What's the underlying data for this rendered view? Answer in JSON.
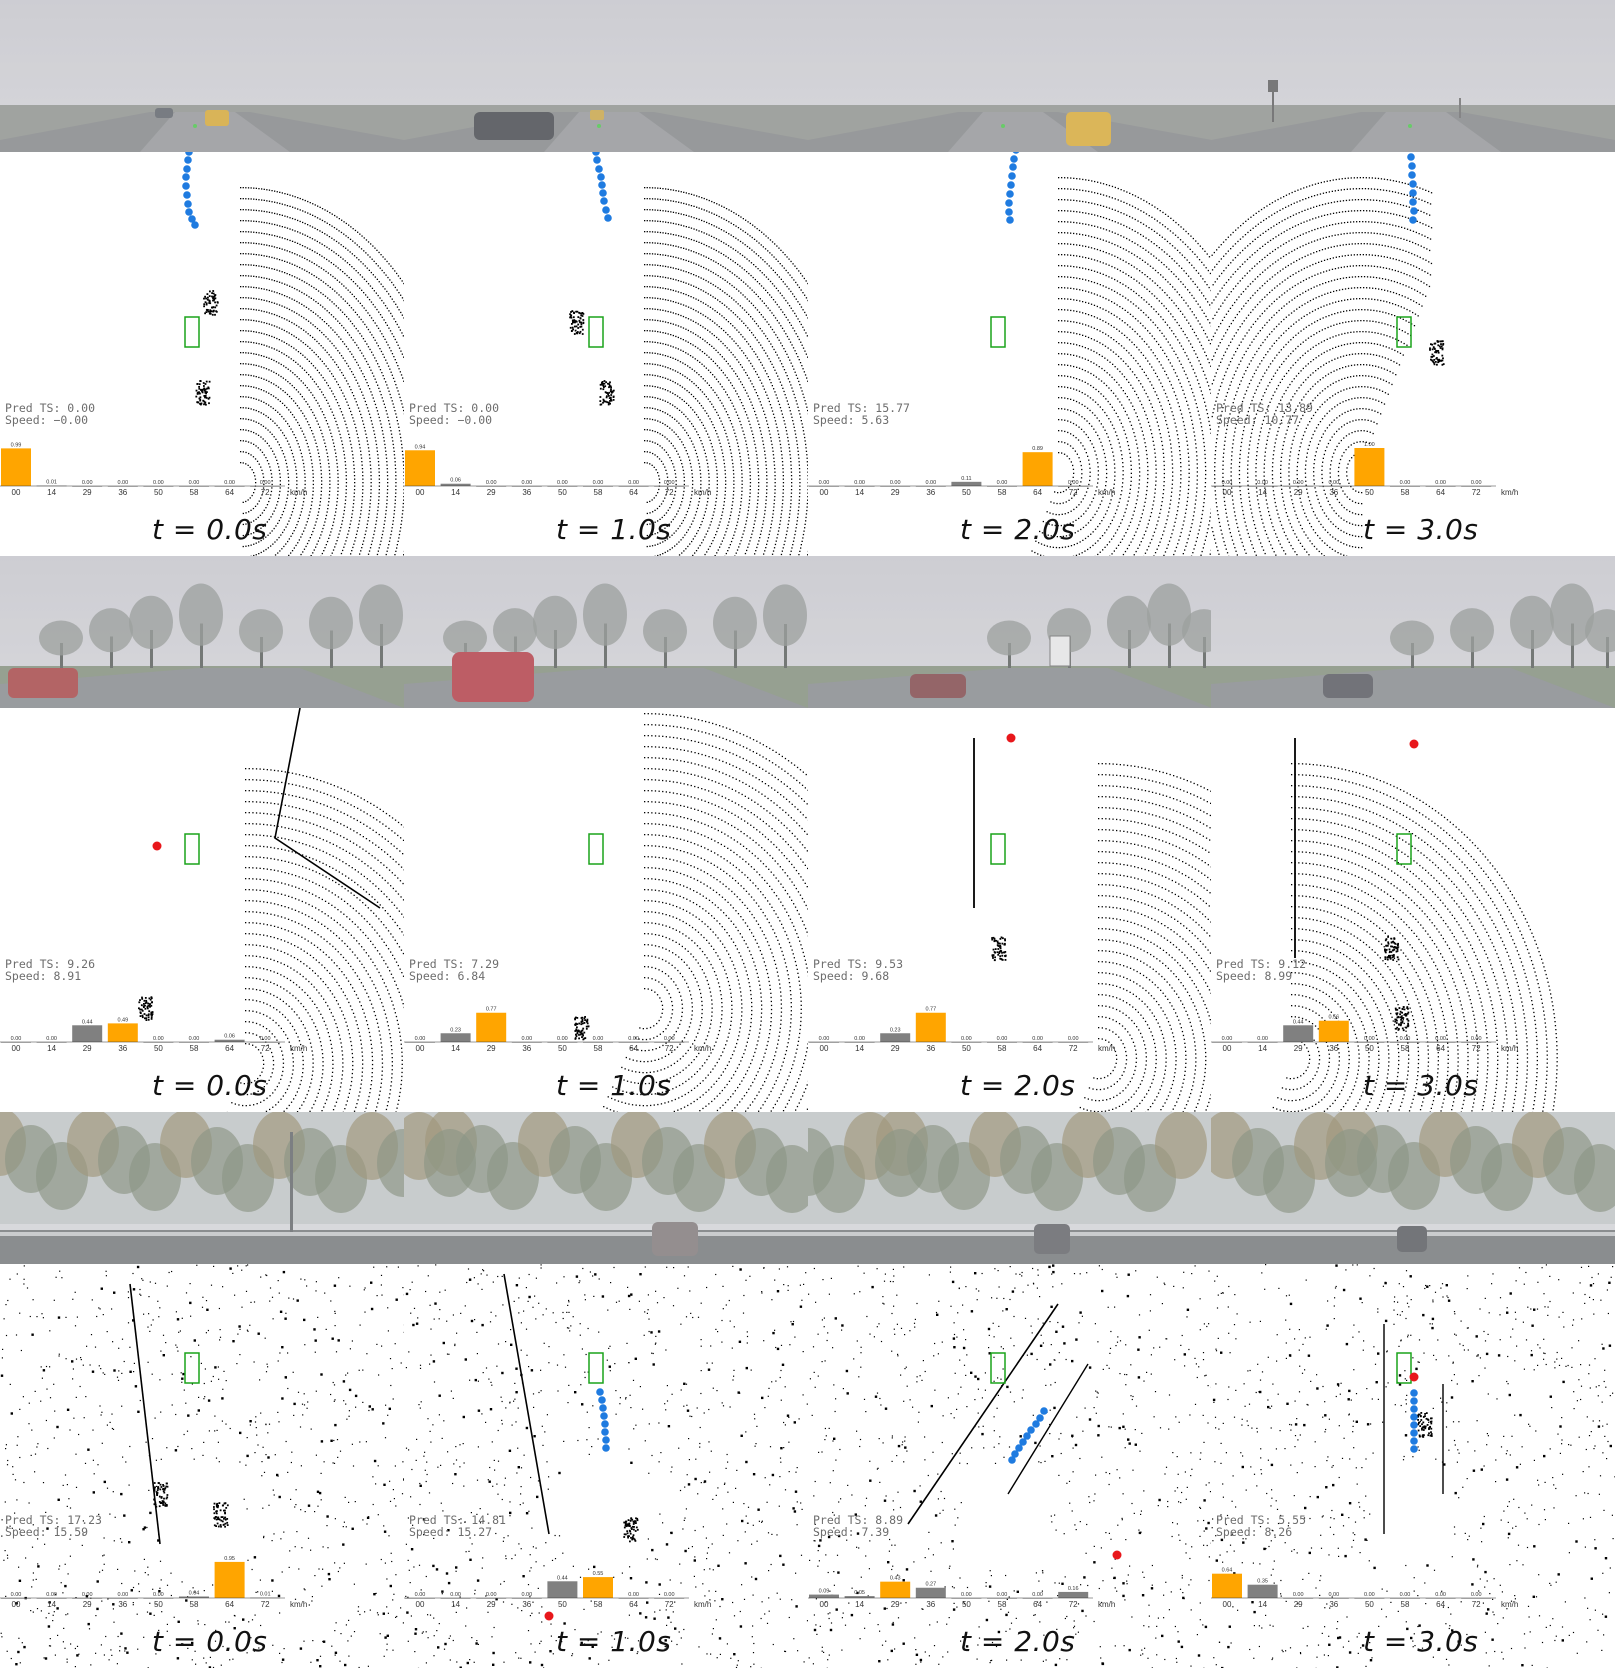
{
  "speed_bins": [
    "00",
    "14",
    "29",
    "36",
    "50",
    "58",
    "64",
    "72"
  ],
  "speed_unit": "km/h",
  "colors": {
    "argmax_bar": "#ffa500",
    "other_bar": "#808080",
    "trajectory": "#1f7be0",
    "target_point": "#e8171b",
    "ego_box": "#1aa31a",
    "lidar": "#000000",
    "fog_sky": "#c8c8cc"
  },
  "labels": {
    "pred_ts": "Pred TS:",
    "speed": "Speed:"
  },
  "rows": [
    {
      "scene": "fog-highway-taxi",
      "panels": [
        {
          "time_label": "t = 0.0s",
          "pred_ts": "0.00",
          "speed": "−0.00",
          "probs": [
            0.99,
            0.01,
            0.0,
            0.0,
            0.0,
            0.0,
            0.0,
            0.0
          ],
          "bar_labels": [
            "0.99",
            "0.01",
            "0.00",
            "0.00",
            "0.00",
            "0.00",
            "0.00",
            "0.00"
          ]
        },
        {
          "time_label": "t = 1.0s",
          "pred_ts": "0.00",
          "speed": "−0.00",
          "probs": [
            0.94,
            0.06,
            0.0,
            0.0,
            0.0,
            0.0,
            0.0,
            0.0
          ],
          "bar_labels": [
            "0.94",
            "0.06",
            "0.00",
            "0.00",
            "0.00",
            "0.00",
            "0.00",
            "0.00"
          ]
        },
        {
          "time_label": "t = 2.0s",
          "pred_ts": "15.77",
          "speed": "5.63",
          "probs": [
            0.0,
            0.0,
            0.0,
            0.0,
            0.11,
            0.0,
            0.89,
            0.0
          ],
          "bar_labels": [
            "0.00",
            "0.00",
            "0.00",
            "0.00",
            "0.11",
            "0.00",
            "0.89",
            "0.00"
          ]
        },
        {
          "time_label": "t = 3.0s",
          "pred_ts": "13.89",
          "speed": "10.77",
          "probs": [
            0.0,
            0.0,
            0.0,
            0.0,
            1.0,
            0.0,
            0.0,
            0.0
          ],
          "bar_labels": [
            "0.00",
            "0.00",
            "0.00",
            "0.00",
            "1.00",
            "0.00",
            "0.00",
            "0.00"
          ]
        }
      ]
    },
    {
      "scene": "fog-intersection-trees",
      "panels": [
        {
          "time_label": "t = 0.0s",
          "pred_ts": "9.26",
          "speed": "8.91",
          "probs": [
            0.0,
            0.0,
            0.44,
            0.49,
            0.0,
            0.0,
            0.06,
            0.0
          ],
          "bar_labels": [
            "0.00",
            "0.00",
            "0.44",
            "0.49",
            "0.00",
            "0.00",
            "0.06",
            "0.00"
          ]
        },
        {
          "time_label": "t = 1.0s",
          "pred_ts": "7.29",
          "speed": "6.84",
          "probs": [
            0.0,
            0.23,
            0.77,
            0.0,
            0.0,
            0.0,
            0.0,
            0.0
          ],
          "bar_labels": [
            "0.00",
            "0.23",
            "0.77",
            "0.00",
            "0.00",
            "0.00",
            "0.00",
            "0.00"
          ]
        },
        {
          "time_label": "t = 2.0s",
          "pred_ts": "9.53",
          "speed": "9.68",
          "probs": [
            0.0,
            0.0,
            0.23,
            0.77,
            0.0,
            0.0,
            0.0,
            0.0
          ],
          "bar_labels": [
            "0.00",
            "0.00",
            "0.23",
            "0.77",
            "0.00",
            "0.00",
            "0.00",
            "0.00"
          ]
        },
        {
          "time_label": "t = 3.0s",
          "pred_ts": "9.12",
          "speed": "8.99",
          "probs": [
            0.0,
            0.0,
            0.44,
            0.56,
            0.0,
            0.0,
            0.0,
            0.0
          ],
          "bar_labels": [
            "0.00",
            "0.00",
            "0.44",
            "0.56",
            "0.00",
            "0.00",
            "0.00",
            "0.00"
          ]
        }
      ]
    },
    {
      "scene": "fog-divided-highway",
      "panels": [
        {
          "time_label": "t = 0.0s",
          "pred_ts": "17.23",
          "speed": "15.59",
          "probs": [
            0.0,
            0.0,
            0.0,
            0.0,
            0.0,
            0.04,
            0.95,
            0.01
          ],
          "bar_labels": [
            "0.00",
            "0.00",
            "0.00",
            "0.00",
            "0.00",
            "0.04",
            "0.95",
            "0.01"
          ]
        },
        {
          "time_label": "t = 1.0s",
          "pred_ts": "14.81",
          "speed": "15.27",
          "probs": [
            0.0,
            0.0,
            0.0,
            0.0,
            0.44,
            0.55,
            0.0,
            0.0
          ],
          "bar_labels": [
            "0.00",
            "0.00",
            "0.00",
            "0.00",
            "0.44",
            "0.55",
            "0.00",
            "0.00"
          ]
        },
        {
          "time_label": "t = 2.0s",
          "pred_ts": "8.89",
          "speed": "7.39",
          "probs": [
            0.09,
            0.05,
            0.43,
            0.27,
            0.0,
            0.0,
            0.0,
            0.16
          ],
          "bar_labels": [
            "0.09",
            "0.05",
            "0.43",
            "0.27",
            "0.00",
            "0.00",
            "0.00",
            "0.16"
          ]
        },
        {
          "time_label": "t = 3.0s",
          "pred_ts": "5.55",
          "speed": "8.26",
          "probs": [
            0.64,
            0.35,
            0.0,
            0.0,
            0.0,
            0.0,
            0.0,
            0.0
          ],
          "bar_labels": [
            "0.64",
            "0.35",
            "0.00",
            "0.00",
            "0.00",
            "0.00",
            "0.00",
            "0.00"
          ]
        }
      ]
    }
  ]
}
